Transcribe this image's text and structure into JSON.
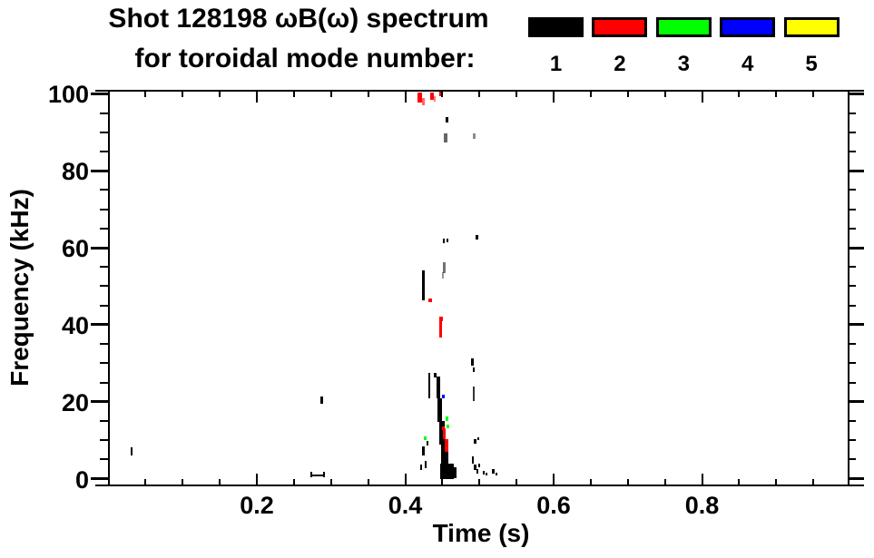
{
  "header": {
    "title_line1": "Shot 128198 ωB(ω) spectrum",
    "title_line2": "for toroidal mode number:"
  },
  "legend": {
    "modes": [
      {
        "label": "1",
        "color": "#000000"
      },
      {
        "label": "2",
        "color": "#ff0000"
      },
      {
        "label": "3",
        "color": "#00ff00"
      },
      {
        "label": "4",
        "color": "#0000ff"
      },
      {
        "label": "5",
        "color": "#ffff00"
      }
    ]
  },
  "chart_data": {
    "type": "scatter",
    "title": "Shot 128198 ωB(ω) spectrum for toroidal mode number: 1 2 3 4 5",
    "xlabel": "Time (s)",
    "ylabel": "Frequency (kHz)",
    "xlim": [
      0,
      1.02
    ],
    "ylim": [
      0,
      100
    ],
    "grid": false,
    "legend_position": "top-right",
    "x_major_ticks": [
      0.2,
      0.4,
      0.6,
      0.8
    ],
    "x_tick_labels": [
      "0.2",
      "0.4",
      "0.6",
      "0.8"
    ],
    "x_minor_step": 0.05,
    "y_major_ticks": [
      0,
      20,
      40,
      60,
      80,
      100
    ],
    "y_tick_labels": [
      "0",
      "20",
      "40",
      "60",
      "80",
      "100"
    ],
    "y_minor_step": 5,
    "series": [
      {
        "name": "n=1",
        "color": "#000000",
        "points": [
          [
            0.031,
            7.2,
            2,
            9
          ],
          [
            0.288,
            20.4,
            3,
            8
          ],
          [
            0.273,
            1.1,
            2,
            6
          ],
          [
            0.282,
            0.9,
            14,
            2
          ],
          [
            0.291,
            1.1,
            2,
            6
          ],
          [
            0.433,
            24.2,
            2,
            28
          ],
          [
            0.44,
            26.8,
            3,
            5
          ],
          [
            0.4447,
            23.7,
            4,
            24
          ],
          [
            0.4465,
            17.8,
            5,
            26
          ],
          [
            0.4496,
            11.9,
            6,
            26
          ],
          [
            0.4526,
            6.5,
            8,
            22
          ],
          [
            0.4557,
            2.0,
            15,
            17
          ],
          [
            0.4655,
            1.6,
            6,
            12
          ],
          [
            0.424,
            7.2,
            3,
            10
          ],
          [
            0.4275,
            3.7,
            2,
            8
          ],
          [
            0.4214,
            3.0,
            2,
            6
          ],
          [
            0.43,
            9.3,
            2,
            5
          ],
          [
            0.4245,
            50.3,
            3,
            33
          ],
          [
            0.452,
            61.7,
            2,
            5
          ],
          [
            0.4563,
            62.0,
            2,
            4
          ],
          [
            0.4972,
            62.8,
            3,
            5
          ],
          [
            0.4557,
            93.2,
            3,
            6
          ],
          [
            0.4545,
            88.5,
            4,
            10,
            0.6
          ],
          [
            0.4924,
            89.0,
            3,
            6,
            0.45
          ],
          [
            0.4532,
            54.8,
            3,
            12,
            0.55
          ],
          [
            0.4502,
            52.7,
            2,
            7,
            0.4
          ],
          [
            0.4911,
            30.3,
            3,
            8
          ],
          [
            0.4924,
            28.2,
            2,
            5
          ],
          [
            0.4924,
            22.1,
            2,
            16,
            0.8
          ],
          [
            0.4942,
            9.8,
            3,
            5
          ],
          [
            0.4985,
            10.5,
            2,
            3
          ],
          [
            0.4911,
            4.9,
            2,
            8
          ],
          [
            0.4936,
            3.0,
            3,
            6
          ],
          [
            0.4972,
            2.0,
            2,
            5
          ],
          [
            0.4997,
            3.4,
            2,
            4
          ],
          [
            0.5058,
            1.6,
            2,
            4
          ],
          [
            0.5089,
            1.1,
            2,
            3
          ],
          [
            0.5181,
            1.8,
            3,
            5
          ],
          [
            0.5224,
            1.3,
            2,
            3
          ]
        ]
      },
      {
        "name": "n=2",
        "color": "#ff0000",
        "points": [
          [
            0.419,
            99.0,
            5,
            11
          ],
          [
            0.4239,
            98.0,
            3,
            8,
            0.6
          ],
          [
            0.4361,
            99.3,
            4,
            8
          ],
          [
            0.4392,
            98.7,
            2,
            6,
            0.5
          ],
          [
            0.4471,
            100.0,
            3,
            5
          ],
          [
            0.4483,
            39.3,
            3,
            22
          ],
          [
            0.4483,
            41.4,
            4,
            5
          ],
          [
            0.4336,
            46.3,
            4,
            4
          ],
          [
            0.4532,
            11.7,
            3,
            12
          ],
          [
            0.4557,
            8.6,
            4,
            14
          ],
          [
            0.4508,
            13.1,
            3,
            4
          ]
        ]
      },
      {
        "name": "n=3",
        "color": "#00ff00",
        "points": [
          [
            0.4263,
            10.5,
            3,
            4
          ],
          [
            0.4557,
            15.5,
            3,
            5
          ],
          [
            0.4575,
            13.6,
            3,
            4
          ]
        ]
      },
      {
        "name": "n=4",
        "color": "#0000ff",
        "points": [
          [
            0.4508,
            21.4,
            3,
            4
          ]
        ]
      },
      {
        "name": "n=5",
        "color": "#ffff00",
        "points": []
      }
    ]
  }
}
